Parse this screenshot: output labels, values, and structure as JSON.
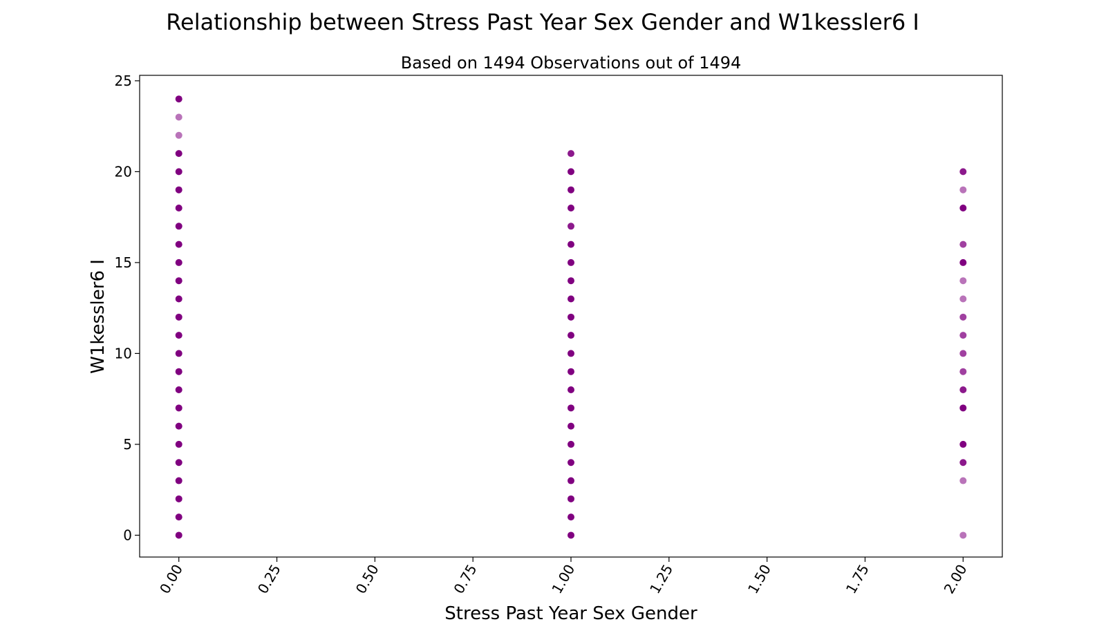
{
  "chart_data": {
    "type": "scatter",
    "title": "Relationship between Stress Past Year Sex Gender and W1kessler6 I",
    "subtitle": "Based on 1494 Observations out of 1494",
    "xlabel": "Stress Past Year Sex Gender",
    "ylabel": "W1kessler6 I",
    "xlim": [
      -0.1,
      2.1
    ],
    "ylim": [
      -1.2,
      25.3
    ],
    "xticks": [
      "0.00",
      "0.25",
      "0.50",
      "0.75",
      "1.00",
      "1.25",
      "1.50",
      "1.75",
      "2.00"
    ],
    "xtick_values": [
      0,
      0.25,
      0.5,
      0.75,
      1.0,
      1.25,
      1.5,
      1.75,
      2.0
    ],
    "yticks": [
      "0",
      "5",
      "10",
      "15",
      "20",
      "25"
    ],
    "ytick_values": [
      0,
      5,
      10,
      15,
      20,
      25
    ],
    "grid": false,
    "marker_color": "#800080",
    "series": [
      {
        "points": [
          {
            "x": 0,
            "y": 0,
            "a": 1
          },
          {
            "x": 0,
            "y": 1,
            "a": 1
          },
          {
            "x": 0,
            "y": 2,
            "a": 1
          },
          {
            "x": 0,
            "y": 3,
            "a": 1
          },
          {
            "x": 0,
            "y": 4,
            "a": 1
          },
          {
            "x": 0,
            "y": 5,
            "a": 1
          },
          {
            "x": 0,
            "y": 6,
            "a": 1
          },
          {
            "x": 0,
            "y": 7,
            "a": 1
          },
          {
            "x": 0,
            "y": 8,
            "a": 1
          },
          {
            "x": 0,
            "y": 9,
            "a": 1
          },
          {
            "x": 0,
            "y": 10,
            "a": 1
          },
          {
            "x": 0,
            "y": 11,
            "a": 1
          },
          {
            "x": 0,
            "y": 12,
            "a": 1
          },
          {
            "x": 0,
            "y": 13,
            "a": 1
          },
          {
            "x": 0,
            "y": 14,
            "a": 1
          },
          {
            "x": 0,
            "y": 15,
            "a": 1
          },
          {
            "x": 0,
            "y": 16,
            "a": 1
          },
          {
            "x": 0,
            "y": 17,
            "a": 1
          },
          {
            "x": 0,
            "y": 18,
            "a": 1
          },
          {
            "x": 0,
            "y": 19,
            "a": 1
          },
          {
            "x": 0,
            "y": 20,
            "a": 1
          },
          {
            "x": 0,
            "y": 21,
            "a": 1
          },
          {
            "x": 0,
            "y": 22,
            "a": 0.55
          },
          {
            "x": 0,
            "y": 23,
            "a": 0.55
          },
          {
            "x": 0,
            "y": 24,
            "a": 1
          },
          {
            "x": 1,
            "y": 0,
            "a": 1
          },
          {
            "x": 1,
            "y": 1,
            "a": 1
          },
          {
            "x": 1,
            "y": 2,
            "a": 1
          },
          {
            "x": 1,
            "y": 3,
            "a": 1
          },
          {
            "x": 1,
            "y": 4,
            "a": 1
          },
          {
            "x": 1,
            "y": 5,
            "a": 1
          },
          {
            "x": 1,
            "y": 6,
            "a": 1
          },
          {
            "x": 1,
            "y": 7,
            "a": 1
          },
          {
            "x": 1,
            "y": 8,
            "a": 1
          },
          {
            "x": 1,
            "y": 9,
            "a": 1
          },
          {
            "x": 1,
            "y": 10,
            "a": 1
          },
          {
            "x": 1,
            "y": 11,
            "a": 1
          },
          {
            "x": 1,
            "y": 12,
            "a": 1
          },
          {
            "x": 1,
            "y": 13,
            "a": 1
          },
          {
            "x": 1,
            "y": 14,
            "a": 1
          },
          {
            "x": 1,
            "y": 15,
            "a": 1
          },
          {
            "x": 1,
            "y": 16,
            "a": 1
          },
          {
            "x": 1,
            "y": 17,
            "a": 0.9
          },
          {
            "x": 1,
            "y": 18,
            "a": 1
          },
          {
            "x": 1,
            "y": 19,
            "a": 1
          },
          {
            "x": 1,
            "y": 20,
            "a": 1
          },
          {
            "x": 1,
            "y": 21,
            "a": 0.9
          },
          {
            "x": 2,
            "y": 0,
            "a": 0.55
          },
          {
            "x": 2,
            "y": 3,
            "a": 0.55
          },
          {
            "x": 2,
            "y": 4,
            "a": 0.9
          },
          {
            "x": 2,
            "y": 5,
            "a": 1
          },
          {
            "x": 2,
            "y": 7,
            "a": 1
          },
          {
            "x": 2,
            "y": 8,
            "a": 0.9
          },
          {
            "x": 2,
            "y": 9,
            "a": 0.75
          },
          {
            "x": 2,
            "y": 10,
            "a": 0.75
          },
          {
            "x": 2,
            "y": 11,
            "a": 0.75
          },
          {
            "x": 2,
            "y": 12,
            "a": 0.75
          },
          {
            "x": 2,
            "y": 13,
            "a": 0.55
          },
          {
            "x": 2,
            "y": 14,
            "a": 0.55
          },
          {
            "x": 2,
            "y": 15,
            "a": 1
          },
          {
            "x": 2,
            "y": 16,
            "a": 0.75
          },
          {
            "x": 2,
            "y": 18,
            "a": 1
          },
          {
            "x": 2,
            "y": 19,
            "a": 0.55
          },
          {
            "x": 2,
            "y": 20,
            "a": 0.9
          }
        ]
      }
    ]
  }
}
